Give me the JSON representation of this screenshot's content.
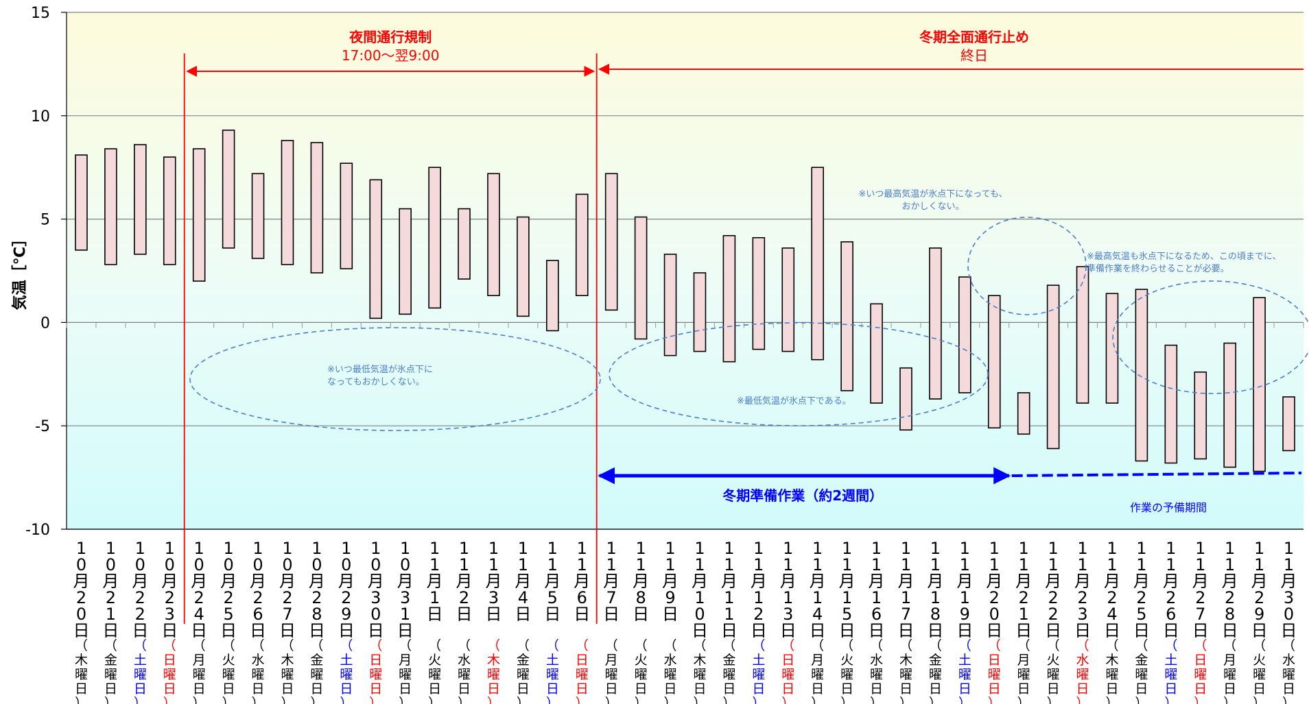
{
  "chart_data": {
    "type": "bar",
    "subtype": "floating-range",
    "ylabel": "気温［℃］",
    "ylim": [
      -10,
      15
    ],
    "yticks": [
      15,
      10,
      5,
      0,
      -5,
      -10
    ],
    "grid": true,
    "categories": [
      {
        "date": "10月20日",
        "day": "（木曜日）",
        "kind": "weekday"
      },
      {
        "date": "10月21日",
        "day": "（金曜日）",
        "kind": "weekday"
      },
      {
        "date": "10月22日",
        "day": "（土曜日）",
        "kind": "saturday"
      },
      {
        "date": "10月23日",
        "day": "（日曜日）",
        "kind": "holiday"
      },
      {
        "date": "10月24日",
        "day": "（月曜日）",
        "kind": "weekday"
      },
      {
        "date": "10月25日",
        "day": "（火曜日）",
        "kind": "weekday"
      },
      {
        "date": "10月26日",
        "day": "（水曜日）",
        "kind": "weekday"
      },
      {
        "date": "10月27日",
        "day": "（木曜日）",
        "kind": "weekday"
      },
      {
        "date": "10月28日",
        "day": "（金曜日）",
        "kind": "weekday"
      },
      {
        "date": "10月29日",
        "day": "（土曜日）",
        "kind": "saturday"
      },
      {
        "date": "10月30日",
        "day": "（日曜日）",
        "kind": "holiday"
      },
      {
        "date": "10月31日",
        "day": "（月曜日）",
        "kind": "weekday"
      },
      {
        "date": "11月1日",
        "day": "（火曜日）",
        "kind": "weekday"
      },
      {
        "date": "11月2日",
        "day": "（水曜日）",
        "kind": "weekday"
      },
      {
        "date": "11月3日",
        "day": "（木曜日）",
        "kind": "holiday"
      },
      {
        "date": "11月4日",
        "day": "（金曜日）",
        "kind": "weekday"
      },
      {
        "date": "11月5日",
        "day": "（土曜日）",
        "kind": "saturday"
      },
      {
        "date": "11月6日",
        "day": "（日曜日）",
        "kind": "holiday"
      },
      {
        "date": "11月7日",
        "day": "（月曜日）",
        "kind": "weekday"
      },
      {
        "date": "11月8日",
        "day": "（火曜日）",
        "kind": "weekday"
      },
      {
        "date": "11月9日",
        "day": "（水曜日）",
        "kind": "weekday"
      },
      {
        "date": "11月10日",
        "day": "（木曜日）",
        "kind": "weekday"
      },
      {
        "date": "11月11日",
        "day": "（金曜日）",
        "kind": "weekday"
      },
      {
        "date": "11月12日",
        "day": "（土曜日）",
        "kind": "saturday"
      },
      {
        "date": "11月13日",
        "day": "（日曜日）",
        "kind": "holiday"
      },
      {
        "date": "11月14日",
        "day": "（月曜日）",
        "kind": "weekday"
      },
      {
        "date": "11月15日",
        "day": "（火曜日）",
        "kind": "weekday"
      },
      {
        "date": "11月16日",
        "day": "（水曜日）",
        "kind": "weekday"
      },
      {
        "date": "11月17日",
        "day": "（木曜日）",
        "kind": "weekday"
      },
      {
        "date": "11月18日",
        "day": "（金曜日）",
        "kind": "weekday"
      },
      {
        "date": "11月19日",
        "day": "（土曜日）",
        "kind": "saturday"
      },
      {
        "date": "11月20日",
        "day": "（日曜日）",
        "kind": "holiday"
      },
      {
        "date": "11月21日",
        "day": "（月曜日）",
        "kind": "weekday"
      },
      {
        "date": "11月22日",
        "day": "（火曜日）",
        "kind": "weekday"
      },
      {
        "date": "11月23日",
        "day": "（水曜日）",
        "kind": "holiday"
      },
      {
        "date": "11月24日",
        "day": "（木曜日）",
        "kind": "weekday"
      },
      {
        "date": "11月25日",
        "day": "（金曜日）",
        "kind": "weekday"
      },
      {
        "date": "11月26日",
        "day": "（土曜日）",
        "kind": "saturday"
      },
      {
        "date": "11月27日",
        "day": "（日曜日）",
        "kind": "holiday"
      },
      {
        "date": "11月28日",
        "day": "（月曜日）",
        "kind": "weekday"
      },
      {
        "date": "11月29日",
        "day": "（火曜日）",
        "kind": "weekday"
      },
      {
        "date": "11月30日",
        "day": "（水曜日）",
        "kind": "weekday"
      }
    ],
    "series": [
      {
        "values_high": [
          8.1,
          8.4,
          8.6,
          8.0,
          8.4,
          9.3,
          7.2,
          8.8,
          8.7,
          7.7,
          6.9,
          5.5,
          7.5,
          5.5,
          7.2,
          5.1,
          3.0,
          6.2,
          7.2,
          5.1,
          3.3,
          2.4,
          4.2,
          4.1,
          3.6,
          7.5,
          3.9,
          0.9,
          -2.2,
          3.6,
          2.2,
          1.3,
          -3.4,
          1.8,
          2.7,
          1.4,
          1.6,
          -1.1,
          -2.4,
          -1.0,
          1.2,
          -3.6
        ],
        "values_low": [
          3.5,
          2.8,
          3.3,
          2.8,
          2.0,
          3.6,
          3.1,
          2.8,
          2.4,
          2.6,
          0.2,
          0.4,
          0.7,
          2.1,
          1.3,
          0.3,
          -0.4,
          1.3,
          0.6,
          -0.8,
          -1.6,
          -1.4,
          -1.9,
          -1.3,
          -1.4,
          -1.8,
          -3.3,
          -3.9,
          -5.2,
          -3.7,
          -3.4,
          -5.1,
          -5.4,
          -6.1,
          -3.9,
          -3.9,
          -6.7,
          -6.8,
          -6.6,
          -7.0,
          -7.2,
          -6.2
        ]
      }
    ],
    "colors": {
      "bar_fill": "#f4dada",
      "bar_stroke": "#000000",
      "red": "#ff0000",
      "blue": "#0000ff",
      "ellipse": "#4a7ec9",
      "annotation": "#4a7ec9",
      "grid": "#808080",
      "bg_top": "#fdfbdc",
      "bg_bottom": "#d8fbfc"
    }
  },
  "annotations": {
    "night_title": "夜間通行規制",
    "night_sub": "17:00～翌9:00",
    "winter_title": "冬期全面通行止め",
    "winter_sub": "終日",
    "prep_label": "冬期準備作業（約2週間）",
    "reserve_label": "作業の予備期間",
    "note_min_may": "※いつ最低気温が氷点下に\nなってもおかしくない。",
    "note_min_below": "※最低気温が氷点下である。",
    "note_max_may": "※いつ最高気温が氷点下になっても、\nおかしくない。",
    "note_max_below": "※最高気温も氷点下になるため、この頃までに、\n準備作業を終わらせることが必要。"
  }
}
